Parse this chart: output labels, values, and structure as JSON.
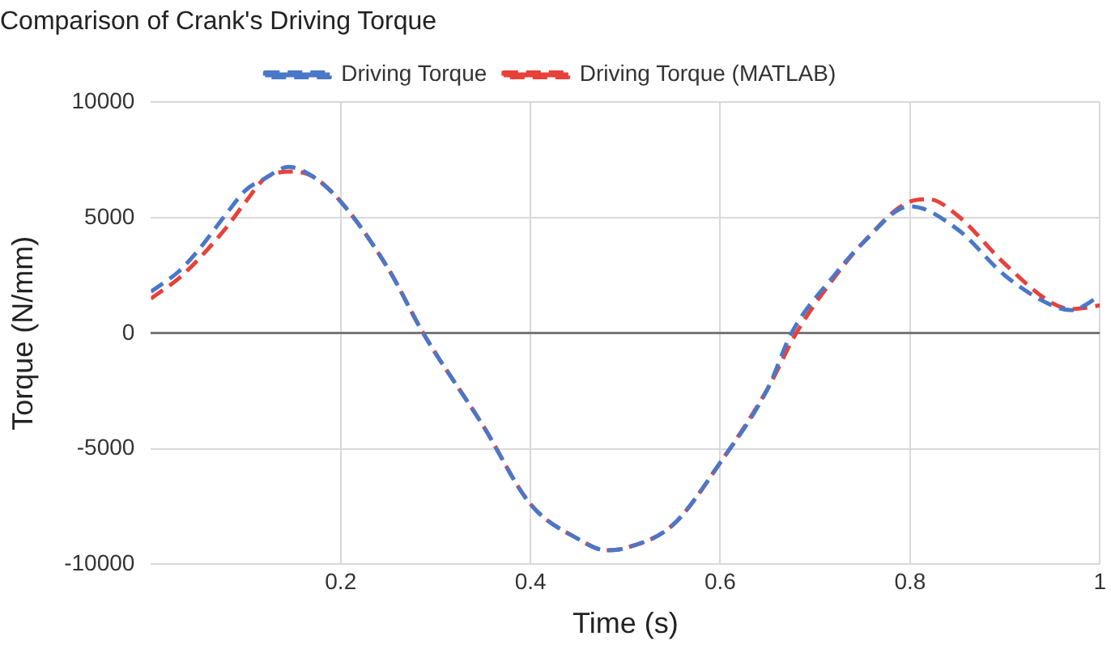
{
  "chart_data": {
    "type": "line",
    "title": "Comparison of Crank's Driving Torque",
    "xlabel": "Time (s)",
    "ylabel": "Torque (N/mm)",
    "xlim": [
      0,
      1
    ],
    "xticks": [
      0.2,
      0.4,
      0.6,
      0.8,
      1
    ],
    "ylim": [
      -10000,
      10000
    ],
    "yticks": [
      -10000,
      -5000,
      0,
      5000,
      10000
    ],
    "grid": true,
    "legend": "top",
    "series": [
      {
        "name": "Driving Torque",
        "color": "#4a78c8",
        "line_style": "dashed",
        "x": [
          0,
          0.03,
          0.05,
          0.08,
          0.1,
          0.12,
          0.145,
          0.17,
          0.2,
          0.25,
          0.287,
          0.35,
          0.4,
          0.45,
          0.48,
          0.5,
          0.55,
          0.6,
          0.65,
          0.675,
          0.72,
          0.75,
          0.8,
          0.85,
          0.9,
          0.95,
          0.97,
          1
        ],
        "values": [
          1800,
          2700,
          3600,
          5200,
          6200,
          6700,
          7200,
          6800,
          5700,
          2800,
          0,
          -4000,
          -7400,
          -8900,
          -9400,
          -9300,
          -8300,
          -5600,
          -2400,
          0,
          2500,
          3900,
          5500,
          4500,
          2500,
          1200,
          1000,
          1600
        ]
      },
      {
        "name": "Driving Torque (MATLAB)",
        "color": "#e8413a",
        "line_style": "dashed",
        "x": [
          0,
          0.03,
          0.05,
          0.08,
          0.1,
          0.12,
          0.15,
          0.17,
          0.2,
          0.25,
          0.287,
          0.35,
          0.4,
          0.45,
          0.48,
          0.5,
          0.55,
          0.6,
          0.65,
          0.68,
          0.72,
          0.75,
          0.8,
          0.82,
          0.85,
          0.9,
          0.95,
          0.97,
          1
        ],
        "values": [
          1500,
          2400,
          3200,
          4600,
          5700,
          6700,
          7000,
          6800,
          5700,
          2800,
          0,
          -4000,
          -7400,
          -8900,
          -9400,
          -9300,
          -8300,
          -5600,
          -2400,
          0,
          2400,
          3900,
          5700,
          5800,
          5100,
          3000,
          1300,
          1050,
          1200
        ]
      }
    ]
  }
}
